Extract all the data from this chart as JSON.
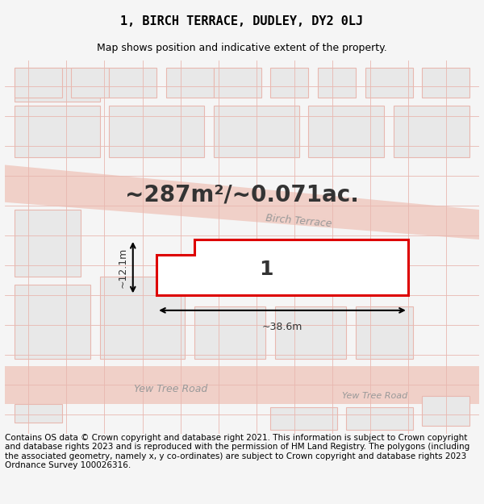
{
  "title": "1, BIRCH TERRACE, DUDLEY, DY2 0LJ",
  "subtitle": "Map shows position and indicative extent of the property.",
  "area_text": "~287m²/~0.071ac.",
  "width_label": "~38.6m",
  "height_label": "~12.1m",
  "plot_number": "1",
  "road_label_top": "Birch Terrace",
  "road_label_bottom": "Yew Tree Road",
  "road_label_bottom2": "Yew Tree Road",
  "footer": "Contains OS data © Crown copyright and database right 2021. This information is subject to Crown copyright and database rights 2023 and is reproduced with the permission of HM Land Registry. The polygons (including the associated geometry, namely x, y co-ordinates) are subject to Crown copyright and database rights 2023 Ordnance Survey 100026316.",
  "bg_color": "#f5f5f5",
  "map_bg": "#ffffff",
  "road_color": "#f0d0c8",
  "building_fill": "#e8e8e8",
  "plot_edge_color": "#dd0000",
  "plot_fill": "#ffffff",
  "grid_line_color": "#e8b8b0",
  "title_fontsize": 11,
  "subtitle_fontsize": 9,
  "area_fontsize": 20,
  "footer_fontsize": 7.5
}
